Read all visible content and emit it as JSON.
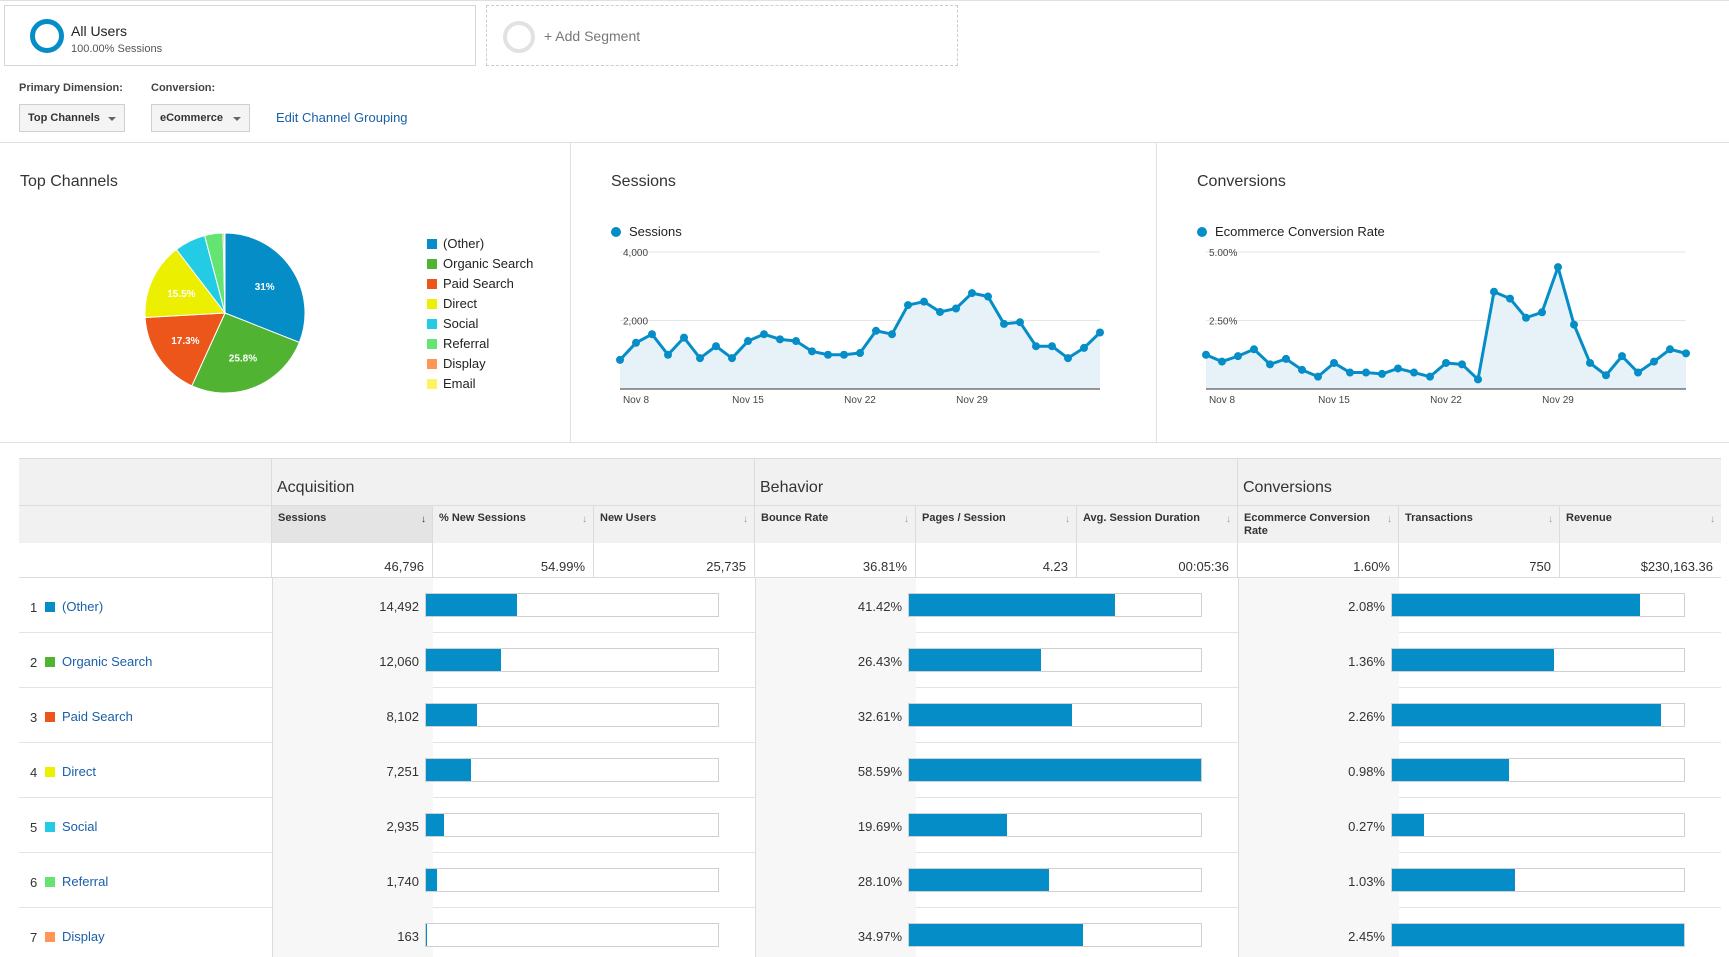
{
  "segments": {
    "active": {
      "name": "All Users",
      "sub": "100.00% Sessions"
    },
    "add_label": "+ Add Segment"
  },
  "controls": {
    "primary_label": "Primary Dimension:",
    "primary_value": "Top Channels",
    "conversion_label": "Conversion:",
    "conversion_value": "eCommerce",
    "edit_link": "Edit Channel Grouping"
  },
  "colors": {
    "accent": "#058dc7",
    "other": "#058dc7",
    "organic": "#50b432",
    "paid": "#ed561b",
    "direct": "#edef00",
    "social": "#24cbe5",
    "referral": "#64e572",
    "display": "#ff9655",
    "email": "#fff263"
  },
  "pie": {
    "title": "Top Channels",
    "chart_data": {
      "type": "pie",
      "slices": [
        {
          "label": "(Other)",
          "value": 31.0,
          "text": "31%",
          "color": "#058dc7"
        },
        {
          "label": "Organic Search",
          "value": 25.8,
          "text": "25.8%",
          "color": "#50b432"
        },
        {
          "label": "Paid Search",
          "value": 17.3,
          "text": "17.3%",
          "color": "#ed561b"
        },
        {
          "label": "Direct",
          "value": 15.5,
          "text": "15.5%",
          "color": "#edef00"
        },
        {
          "label": "Social",
          "value": 6.3,
          "text": "",
          "color": "#24cbe5"
        },
        {
          "label": "Referral",
          "value": 3.7,
          "text": "",
          "color": "#64e572"
        },
        {
          "label": "Display",
          "value": 0.3,
          "text": "",
          "color": "#ff9655"
        },
        {
          "label": "Email",
          "value": 0.1,
          "text": "",
          "color": "#fff263"
        }
      ]
    },
    "legend": [
      "(Other)",
      "Organic Search",
      "Paid Search",
      "Direct",
      "Social",
      "Referral",
      "Display",
      "Email"
    ]
  },
  "sessions": {
    "title": "Sessions",
    "series_name": "Sessions",
    "chart_data": {
      "type": "area",
      "series_name": "Sessions",
      "xticks": [
        "Nov 8",
        "Nov 15",
        "Nov 22",
        "Nov 29"
      ],
      "xtick_index": [
        1,
        8,
        15,
        22
      ],
      "yticks": [
        "4,000",
        "2,000"
      ],
      "ytick_values": [
        4000,
        2000
      ],
      "ylim": [
        0,
        4000
      ],
      "values": [
        850,
        1350,
        1600,
        1000,
        1500,
        900,
        1250,
        900,
        1400,
        1600,
        1450,
        1400,
        1100,
        1000,
        1000,
        1050,
        1700,
        1600,
        2450,
        2550,
        2250,
        2350,
        2800,
        2700,
        1900,
        1950,
        1250,
        1250,
        900,
        1200,
        1650
      ]
    }
  },
  "conversions": {
    "title": "Conversions",
    "series_name": "Ecommerce Conversion Rate",
    "chart_data": {
      "type": "area",
      "series_name": "Ecommerce Conversion Rate",
      "xticks": [
        "Nov 8",
        "Nov 15",
        "Nov 22",
        "Nov 29"
      ],
      "xtick_index": [
        1,
        8,
        15,
        22
      ],
      "yticks": [
        "5.00%",
        "2.50%"
      ],
      "ytick_values": [
        5.0,
        2.5
      ],
      "ylim": [
        0,
        5.0
      ],
      "values": [
        1.25,
        1.0,
        1.2,
        1.45,
        0.9,
        1.1,
        0.7,
        0.45,
        0.95,
        0.6,
        0.6,
        0.55,
        0.75,
        0.6,
        0.45,
        0.95,
        0.9,
        0.35,
        3.55,
        3.3,
        2.6,
        2.8,
        4.45,
        2.35,
        0.95,
        0.5,
        1.2,
        0.6,
        1.0,
        1.45,
        1.3
      ]
    }
  },
  "table": {
    "groups": [
      "Acquisition",
      "Behavior",
      "Conversions"
    ],
    "columns": [
      {
        "label": "Sessions",
        "sorted": true
      },
      {
        "label": "% New Sessions"
      },
      {
        "label": "New Users"
      },
      {
        "label": "Bounce Rate"
      },
      {
        "label": "Pages / Session"
      },
      {
        "label": "Avg. Session Duration"
      },
      {
        "label": "Ecommerce Conversion Rate"
      },
      {
        "label": "Transactions"
      },
      {
        "label": "Revenue"
      }
    ],
    "totals": [
      "46,796",
      "54.99%",
      "25,735",
      "36.81%",
      "4.23",
      "00:05:36",
      "1.60%",
      "750",
      "$230,163.36"
    ],
    "rows": [
      {
        "rank": "1",
        "name": "(Other)",
        "color": "#058dc7",
        "sessions": "14,492",
        "sessions_share": 0.31,
        "bounce": "41.42%",
        "bounce_share": 0.707,
        "conv": "2.08%",
        "conv_share": 0.849
      },
      {
        "rank": "2",
        "name": "Organic Search",
        "color": "#50b432",
        "sessions": "12,060",
        "sessions_share": 0.258,
        "bounce": "26.43%",
        "bounce_share": 0.451,
        "conv": "1.36%",
        "conv_share": 0.555
      },
      {
        "rank": "3",
        "name": "Paid Search",
        "color": "#ed561b",
        "sessions": "8,102",
        "sessions_share": 0.173,
        "bounce": "32.61%",
        "bounce_share": 0.557,
        "conv": "2.26%",
        "conv_share": 0.922
      },
      {
        "rank": "4",
        "name": "Direct",
        "color": "#edef00",
        "sessions": "7,251",
        "sessions_share": 0.155,
        "bounce": "58.59%",
        "bounce_share": 1.0,
        "conv": "0.98%",
        "conv_share": 0.4
      },
      {
        "rank": "5",
        "name": "Social",
        "color": "#24cbe5",
        "sessions": "2,935",
        "sessions_share": 0.063,
        "bounce": "19.69%",
        "bounce_share": 0.336,
        "conv": "0.27%",
        "conv_share": 0.11
      },
      {
        "rank": "6",
        "name": "Referral",
        "color": "#64e572",
        "sessions": "1,740",
        "sessions_share": 0.037,
        "bounce": "28.10%",
        "bounce_share": 0.48,
        "conv": "1.03%",
        "conv_share": 0.42
      },
      {
        "rank": "7",
        "name": "Display",
        "color": "#ff9655",
        "sessions": "163",
        "sessions_share": 0.003,
        "bounce": "34.97%",
        "bounce_share": 0.597,
        "conv": "2.45%",
        "conv_share": 1.0
      }
    ]
  }
}
